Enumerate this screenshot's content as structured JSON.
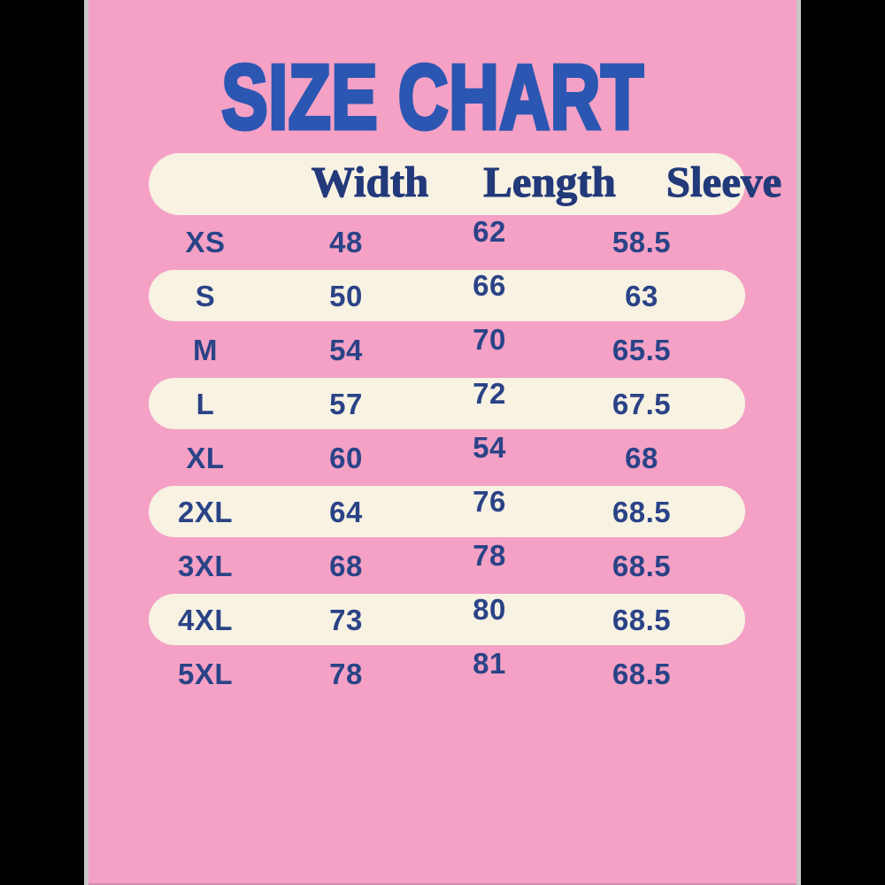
{
  "title": "SIZE CHART",
  "chart_data": {
    "type": "table",
    "title": "SIZE CHART",
    "columns": [
      "Width",
      "Length",
      "Sleeve"
    ],
    "row_header_column": "size",
    "rows": [
      {
        "size": "XS",
        "width": "48",
        "length": "62",
        "sleeve": "58.5"
      },
      {
        "size": "S",
        "width": "50",
        "length": "66",
        "sleeve": "63"
      },
      {
        "size": "M",
        "width": "54",
        "length": "70",
        "sleeve": "65.5"
      },
      {
        "size": "L",
        "width": "57",
        "length": "72",
        "sleeve": "67.5"
      },
      {
        "size": "XL",
        "width": "60",
        "length": "54",
        "sleeve": "68"
      },
      {
        "size": "2XL",
        "width": "64",
        "length": "76",
        "sleeve": "68.5"
      },
      {
        "size": "3XL",
        "width": "68",
        "length": "78",
        "sleeve": "68.5"
      },
      {
        "size": "4XL",
        "width": "73",
        "length": "80",
        "sleeve": "68.5"
      },
      {
        "size": "5XL",
        "width": "78",
        "length": "81",
        "sleeve": "68.5"
      }
    ],
    "layout": {
      "striped": "alternate rows cream pill starting at second row",
      "grid": false,
      "legend": "none"
    }
  },
  "colors": {
    "background_pink": "#f4a1c5",
    "pill_cream": "#f8f2e3",
    "title_blue": "#2b56b2",
    "header_navy": "#22397a",
    "value_navy": "#2a4387",
    "side_black": "#000000",
    "edge_gray": "#c7c7c7",
    "bottom_line_mauve": "#cf8fb0"
  }
}
